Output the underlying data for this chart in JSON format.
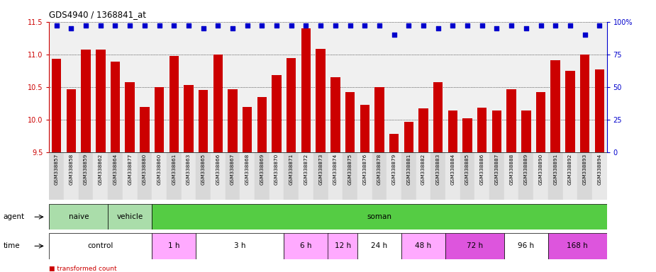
{
  "title": "GDS4940 / 1368841_at",
  "samples": [
    "GSM338857",
    "GSM338858",
    "GSM338859",
    "GSM338862",
    "GSM338864",
    "GSM338877",
    "GSM338880",
    "GSM338860",
    "GSM338861",
    "GSM338863",
    "GSM338865",
    "GSM338866",
    "GSM338867",
    "GSM338868",
    "GSM338869",
    "GSM338870",
    "GSM338871",
    "GSM338872",
    "GSM338873",
    "GSM338874",
    "GSM338875",
    "GSM338876",
    "GSM338878",
    "GSM338879",
    "GSM338881",
    "GSM338882",
    "GSM338883",
    "GSM338884",
    "GSM338885",
    "GSM338886",
    "GSM338887",
    "GSM338888",
    "GSM338889",
    "GSM338890",
    "GSM338891",
    "GSM338892",
    "GSM338893",
    "GSM338894"
  ],
  "bar_values": [
    10.93,
    10.47,
    11.07,
    11.07,
    10.89,
    10.57,
    10.2,
    10.5,
    10.98,
    10.53,
    10.46,
    11.0,
    10.47,
    10.2,
    10.35,
    10.68,
    10.94,
    11.4,
    11.08,
    10.65,
    10.42,
    10.23,
    10.5,
    9.78,
    9.97,
    10.17,
    10.57,
    10.14,
    10.02,
    10.18,
    10.14,
    10.47,
    10.14,
    10.42,
    10.91,
    10.75,
    11.0,
    10.77
  ],
  "percentile_values": [
    97,
    95,
    97,
    97,
    97,
    97,
    97,
    97,
    97,
    97,
    95,
    97,
    95,
    97,
    97,
    97,
    97,
    97,
    97,
    97,
    97,
    97,
    97,
    90,
    97,
    97,
    95,
    97,
    97,
    97,
    95,
    97,
    95,
    97,
    97,
    97,
    90,
    97
  ],
  "bar_color": "#CC0000",
  "percentile_color": "#0000CC",
  "ylim": [
    9.5,
    11.5
  ],
  "ylim_right": [
    0,
    100
  ],
  "yticks_left": [
    9.5,
    10.0,
    10.5,
    11.0,
    11.5
  ],
  "yticks_right": [
    0,
    25,
    50,
    75,
    100
  ],
  "plot_bg_color": "#f0f0f0",
  "agent_segments": [
    {
      "label": "naive",
      "start": 0,
      "end": 4,
      "color": "#aaddaa"
    },
    {
      "label": "vehicle",
      "start": 4,
      "end": 7,
      "color": "#aaddaa"
    },
    {
      "label": "soman",
      "start": 7,
      "end": 38,
      "color": "#55cc44"
    }
  ],
  "time_segments": [
    {
      "label": "control",
      "start": 0,
      "end": 7,
      "color": "#ffffff"
    },
    {
      "label": "1 h",
      "start": 7,
      "end": 10,
      "color": "#ffaaff"
    },
    {
      "label": "3 h",
      "start": 10,
      "end": 16,
      "color": "#ffffff"
    },
    {
      "label": "6 h",
      "start": 16,
      "end": 19,
      "color": "#ffaaff"
    },
    {
      "label": "12 h",
      "start": 19,
      "end": 21,
      "color": "#ffaaff"
    },
    {
      "label": "24 h",
      "start": 21,
      "end": 24,
      "color": "#ffffff"
    },
    {
      "label": "48 h",
      "start": 24,
      "end": 27,
      "color": "#ffaaff"
    },
    {
      "label": "72 h",
      "start": 27,
      "end": 31,
      "color": "#dd55dd"
    },
    {
      "label": "96 h",
      "start": 31,
      "end": 34,
      "color": "#ffffff"
    },
    {
      "label": "168 h",
      "start": 34,
      "end": 38,
      "color": "#dd55dd"
    }
  ]
}
